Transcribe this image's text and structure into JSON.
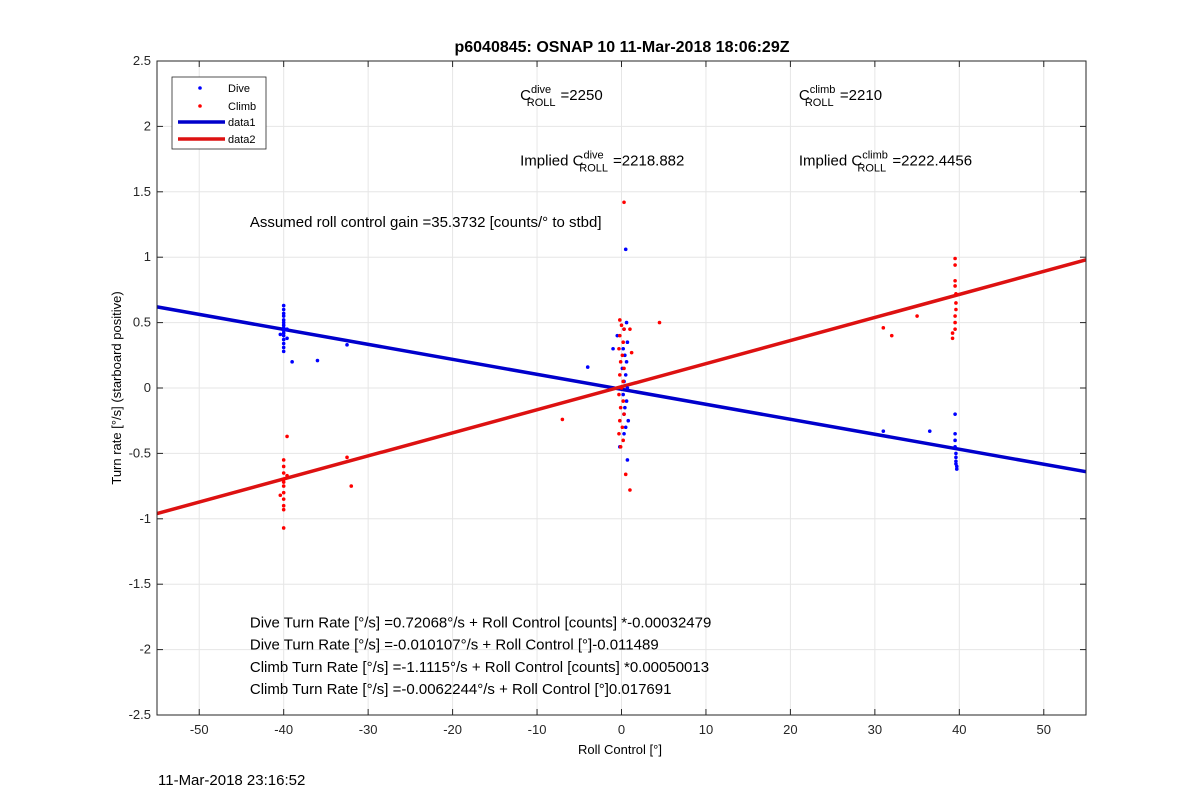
{
  "figure": {
    "footer_timestamp": "11-Mar-2018 23:16:52"
  },
  "chart_data": {
    "type": "scatter",
    "title": "p6040845: OSNAP 10 11-Mar-2018 18:06:29Z",
    "xlabel": "Roll Control [°]",
    "ylabel": "Turn rate [°/s] (starboard positive)",
    "xlim": [
      -55,
      55
    ],
    "ylim": [
      -2.5,
      2.5
    ],
    "xticks": [
      -50,
      -40,
      -30,
      -20,
      -10,
      0,
      10,
      20,
      30,
      40,
      50
    ],
    "yticks": [
      -2.5,
      -2,
      -1.5,
      -1,
      -0.5,
      0,
      0.5,
      1,
      1.5,
      2,
      2.5
    ],
    "xtick_labels": [
      "-50",
      "-40",
      "-30",
      "-20",
      "-10",
      "0",
      "10",
      "20",
      "30",
      "40",
      "50"
    ],
    "ytick_labels": [
      "-2.5",
      "-2",
      "-1.5",
      "-1",
      "-0.5",
      "0",
      "0.5",
      "1",
      "1.5",
      "2",
      "2.5"
    ],
    "grid": true,
    "legend_position": "top-left",
    "colors": {
      "dive": "#0000ff",
      "climb": "#ff0000",
      "dive_line": "#0000cc",
      "climb_line": "#dd1111",
      "grid": "#e6e6e6"
    },
    "series": [
      {
        "name": "Dive",
        "kind": "points",
        "color": "#0000ff",
        "points": [
          [
            -40,
            0.63
          ],
          [
            -40,
            0.6
          ],
          [
            -40,
            0.57
          ],
          [
            -40,
            0.55
          ],
          [
            -40,
            0.52
          ],
          [
            -40,
            0.5
          ],
          [
            -40,
            0.48
          ],
          [
            -40,
            0.46
          ],
          [
            -40,
            0.44
          ],
          [
            -40,
            0.42
          ],
          [
            -40,
            0.4
          ],
          [
            -40,
            0.37
          ],
          [
            -40,
            0.34
          ],
          [
            -40,
            0.31
          ],
          [
            -40,
            0.28
          ],
          [
            -39.6,
            0.45
          ],
          [
            -39.6,
            0.38
          ],
          [
            -40.4,
            0.41
          ],
          [
            -39,
            0.2
          ],
          [
            -36,
            0.21
          ],
          [
            -32.5,
            0.33
          ],
          [
            -4,
            0.16
          ],
          [
            -0.5,
            0.4
          ],
          [
            -1,
            0.3
          ],
          [
            0.5,
            1.06
          ],
          [
            0.6,
            0.5
          ],
          [
            0.3,
            0.45
          ],
          [
            0.7,
            0.35
          ],
          [
            0.2,
            0.3
          ],
          [
            0.4,
            0.25
          ],
          [
            0.6,
            0.2
          ],
          [
            0.1,
            0.15
          ],
          [
            0.5,
            0.1
          ],
          [
            0.3,
            0.05
          ],
          [
            0.7,
            0
          ],
          [
            0.2,
            -0.05
          ],
          [
            0.6,
            -0.1
          ],
          [
            0.4,
            -0.15
          ],
          [
            0.3,
            -0.2
          ],
          [
            0.8,
            -0.25
          ],
          [
            0.5,
            -0.3
          ],
          [
            0.3,
            -0.35
          ],
          [
            -0.2,
            -0.45
          ],
          [
            0.7,
            -0.55
          ],
          [
            31,
            -0.33
          ],
          [
            36.5,
            -0.33
          ],
          [
            39.5,
            -0.2
          ],
          [
            39.5,
            -0.35
          ],
          [
            39.5,
            -0.4
          ],
          [
            39.5,
            -0.45
          ],
          [
            39.6,
            -0.5
          ],
          [
            39.6,
            -0.53
          ],
          [
            39.6,
            -0.56
          ],
          [
            39.6,
            -0.58
          ],
          [
            39.7,
            -0.6
          ],
          [
            39.7,
            -0.62
          ]
        ]
      },
      {
        "name": "Climb",
        "kind": "points",
        "color": "#ff0000",
        "points": [
          [
            -40,
            -0.55
          ],
          [
            -40,
            -0.6
          ],
          [
            -40,
            -0.65
          ],
          [
            -40,
            -0.7
          ],
          [
            -40,
            -0.72
          ],
          [
            -40,
            -0.75
          ],
          [
            -40,
            -0.8
          ],
          [
            -40,
            -0.85
          ],
          [
            -40,
            -0.9
          ],
          [
            -40,
            -0.93
          ],
          [
            -40,
            -1.07
          ],
          [
            -39.6,
            -0.37
          ],
          [
            -39.6,
            -0.67
          ],
          [
            -40.4,
            -0.82
          ],
          [
            -32.5,
            -0.53
          ],
          [
            -32,
            -0.75
          ],
          [
            -7,
            -0.24
          ],
          [
            0.3,
            1.42
          ],
          [
            -0.2,
            0.52
          ],
          [
            0,
            0.48
          ],
          [
            0.3,
            0.45
          ],
          [
            -0.2,
            0.4
          ],
          [
            0.2,
            0.35
          ],
          [
            -0.3,
            0.3
          ],
          [
            0.1,
            0.25
          ],
          [
            -0.1,
            0.2
          ],
          [
            0.3,
            0.15
          ],
          [
            -0.2,
            0.1
          ],
          [
            0.2,
            0.05
          ],
          [
            0,
            0
          ],
          [
            -0.3,
            -0.05
          ],
          [
            0.2,
            -0.1
          ],
          [
            -0.1,
            -0.15
          ],
          [
            0.3,
            -0.2
          ],
          [
            -0.2,
            -0.25
          ],
          [
            0.1,
            -0.3
          ],
          [
            -0.3,
            -0.35
          ],
          [
            0.2,
            -0.4
          ],
          [
            -0.1,
            -0.45
          ],
          [
            0.5,
            -0.66
          ],
          [
            1,
            -0.78
          ],
          [
            1.2,
            0.27
          ],
          [
            1,
            0.45
          ],
          [
            4.5,
            0.5
          ],
          [
            31,
            0.46
          ],
          [
            32,
            0.4
          ],
          [
            35,
            0.55
          ],
          [
            39.5,
            0.99
          ],
          [
            39.5,
            0.94
          ],
          [
            39.5,
            0.82
          ],
          [
            39.5,
            0.78
          ],
          [
            39.6,
            0.72
          ],
          [
            39.6,
            0.65
          ],
          [
            39.6,
            0.6
          ],
          [
            39.5,
            0.55
          ],
          [
            39.5,
            0.5
          ],
          [
            39.5,
            0.45
          ],
          [
            39.2,
            0.42
          ],
          [
            39.2,
            0.38
          ]
        ]
      },
      {
        "name": "data1",
        "kind": "line",
        "color": "#0000cc",
        "x": [
          -55,
          55
        ],
        "y": [
          0.62,
          -0.64
        ]
      },
      {
        "name": "data2",
        "kind": "line",
        "color": "#dd1111",
        "x": [
          -55,
          55
        ],
        "y": [
          -0.96,
          0.98
        ]
      }
    ],
    "annotations": {
      "c_roll_dive": {
        "prefix": "C",
        "sup": "dive",
        "sub": "ROLL",
        "value": "=2250",
        "x": -12,
        "y": 2.2
      },
      "c_roll_climb": {
        "prefix": "C",
        "sup": "climb",
        "sub": "ROLL",
        "value": "=2210",
        "x": 21,
        "y": 2.2
      },
      "implied_dive": {
        "prefix": "Implied C",
        "sup": "dive",
        "sub": "ROLL",
        "value": "=2218.882",
        "x": -12,
        "y": 1.7
      },
      "implied_climb": {
        "prefix": "Implied C",
        "sup": "climb",
        "sub": "ROLL",
        "value": "=2222.4456",
        "x": 21,
        "y": 1.7
      },
      "gain": {
        "text": "Assumed roll control gain =35.3732 [counts/° to stbd]",
        "x": -44,
        "y": 1.23
      },
      "fit_lines": [
        {
          "text": "Dive Turn Rate [°/s] =0.72068°/s + Roll Control [counts] *-0.00032479",
          "x": -44,
          "y": -1.83
        },
        {
          "text": "Dive Turn Rate [°/s] =-0.010107°/s + Roll Control [°]-0.011489",
          "x": -44,
          "y": -2.0
        },
        {
          "text": "Climb Turn Rate [°/s] =-1.1115°/s + Roll Control [counts] *0.00050013",
          "x": -44,
          "y": -2.17
        },
        {
          "text": "Climb Turn Rate [°/s] =-0.0062244°/s + Roll Control [°]0.017691",
          "x": -44,
          "y": -2.34
        }
      ]
    }
  }
}
